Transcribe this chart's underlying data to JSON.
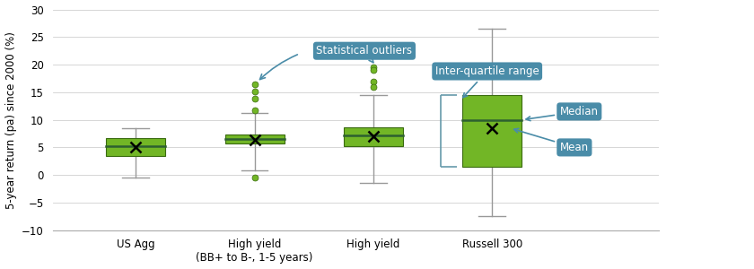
{
  "ylabel": "5-year return (pa) since 2000 (%)",
  "ylim": [
    -10,
    30
  ],
  "yticks": [
    -10,
    -5,
    0,
    5,
    10,
    15,
    20,
    25,
    30
  ],
  "categories": [
    "US Agg",
    "High yield\n(BB+ to B-, 1-5 years)",
    "High yield",
    "Russell 300"
  ],
  "box_color": "#72b626",
  "box_edge_color": "#3a6b10",
  "whisker_color": "#999999",
  "median_color": "#2d6030",
  "boxes": [
    {
      "q1": 3.5,
      "median": 5.2,
      "q3": 6.7,
      "mean": 5.0,
      "whisker_low": -0.5,
      "whisker_high": 8.5,
      "outliers": []
    },
    {
      "q1": 5.7,
      "median": 6.5,
      "q3": 7.3,
      "mean": 6.3,
      "whisker_low": 0.8,
      "whisker_high": 11.3,
      "outliers": [
        -0.5,
        16.5,
        15.2,
        13.8,
        11.8
      ]
    },
    {
      "q1": 5.2,
      "median": 7.2,
      "q3": 8.6,
      "mean": 7.0,
      "whisker_low": -1.5,
      "whisker_high": 14.5,
      "outliers": [
        19.5,
        19.0,
        17.0,
        16.0
      ]
    },
    {
      "q1": 1.5,
      "median": 10.0,
      "q3": 14.5,
      "mean": 8.5,
      "whisker_low": -7.5,
      "whisker_high": 26.5,
      "outliers": []
    }
  ],
  "annotation_box_color": "#4a8ca8",
  "annotation_text_color": "#ffffff",
  "annotation_fontsize": 8.5,
  "label_fontsize": 8.5,
  "tick_fontsize": 8.5,
  "background_color": "#ffffff",
  "grid_color": "#d0d0d0",
  "xlim": [
    0.3,
    5.4
  ],
  "positions": [
    1,
    2,
    3,
    4
  ],
  "box_width": 0.5,
  "bracket_color": "#6699aa"
}
